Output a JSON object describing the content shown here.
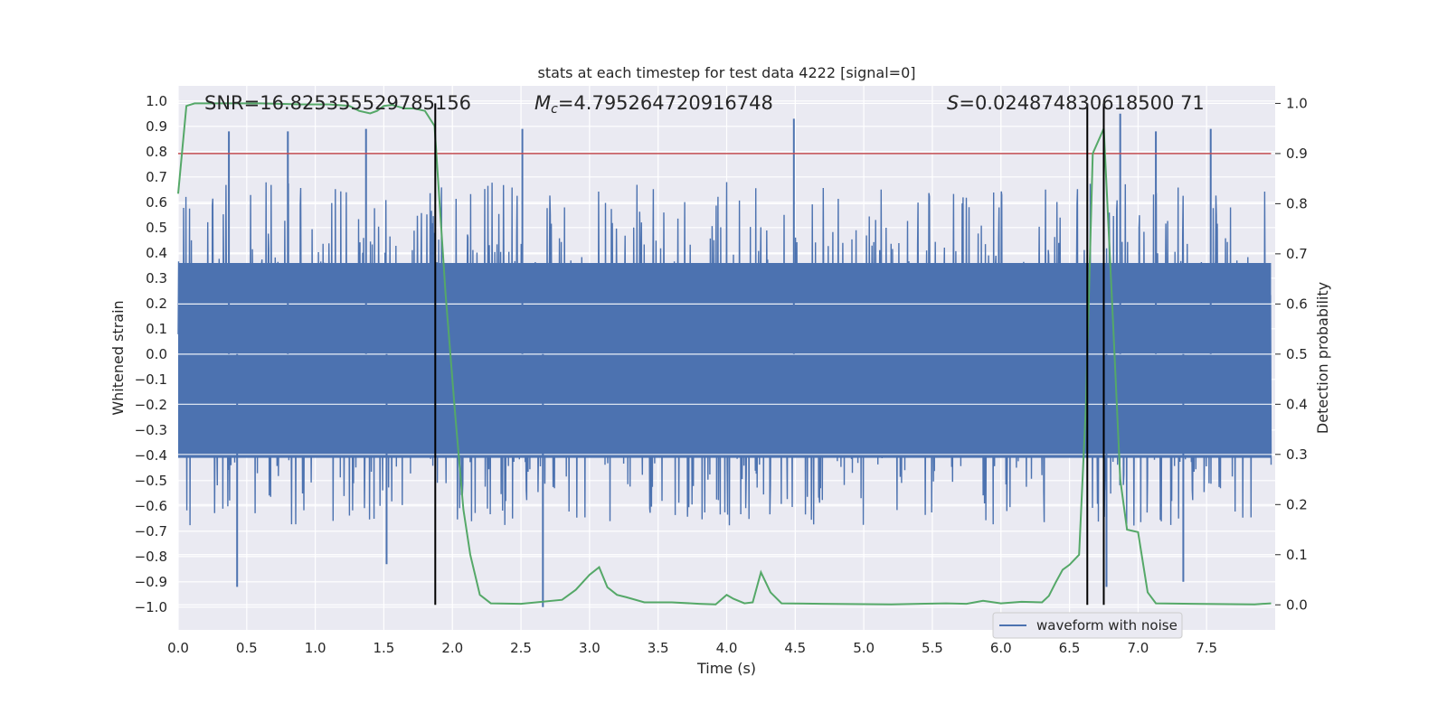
{
  "chart_data": {
    "type": "line",
    "title": "stats at each timestep for test data 4222 [signal=0]",
    "xlabel": "Time (s)",
    "ylabel": "Whitened strain",
    "ylabel_right": "Detection probability",
    "xlim": [
      0,
      8
    ],
    "ylim": [
      -1.09,
      1.06
    ],
    "ylim_right": [
      -0.05,
      1.035
    ],
    "x_ticks": [
      "0.0",
      "0.5",
      "1.0",
      "1.5",
      "2.0",
      "2.5",
      "3.0",
      "3.5",
      "4.0",
      "4.5",
      "5.0",
      "5.5",
      "6.0",
      "6.5",
      "7.0",
      "7.5"
    ],
    "y_ticks": [
      "1.0",
      "0.9",
      "0.8",
      "0.7",
      "0.6",
      "0.5",
      "0.4",
      "0.3",
      "0.2",
      "0.1",
      "0.0",
      "-0.1",
      "-0.2",
      "-0.3",
      "-0.4",
      "-0.5",
      "-0.6",
      "-0.7",
      "-0.8",
      "-0.9",
      "-1.0"
    ],
    "y_right_ticks": [
      "1.0",
      "0.9",
      "0.8",
      "0.7",
      "0.6",
      "0.5",
      "0.4",
      "0.3",
      "0.2",
      "0.1",
      "0.0"
    ],
    "annotations": {
      "snr": "SNR=16.825355529785156",
      "mc_symbol": "M",
      "mc_subscript": "c",
      "mc_value": "=4.795264720916748",
      "s_symbol": "S",
      "s_value": "=0.024874830618500 71"
    },
    "threshold": 0.9,
    "vertical_markers": [
      1.875,
      6.63,
      6.75
    ],
    "series": [
      {
        "name": "waveform with noise",
        "axis": "left",
        "color": "#4c72b0",
        "description": "dense whitened noise strain, mostly within ±0.4 with spikes to ±0.95",
        "spikes": [
          {
            "x": 0.37,
            "y": 0.88
          },
          {
            "x": 0.43,
            "y": -0.92
          },
          {
            "x": 0.8,
            "y": 0.88
          },
          {
            "x": 1.37,
            "y": 0.89
          },
          {
            "x": 1.52,
            "y": -0.83
          },
          {
            "x": 2.51,
            "y": 0.89
          },
          {
            "x": 2.66,
            "y": -1.0
          },
          {
            "x": 4.49,
            "y": 0.93
          },
          {
            "x": 6.87,
            "y": 0.95
          },
          {
            "x": 6.77,
            "y": -0.92
          },
          {
            "x": 7.13,
            "y": 0.88
          },
          {
            "x": 7.33,
            "y": -0.9
          },
          {
            "x": 7.53,
            "y": 0.89
          }
        ]
      },
      {
        "name": "detection probability",
        "axis": "right",
        "color": "#55a868",
        "x": [
          0.0,
          0.06,
          0.12,
          0.3,
          0.6,
          0.9,
          1.1,
          1.25,
          1.32,
          1.4,
          1.45,
          1.5,
          1.56,
          1.65,
          1.72,
          1.8,
          1.87,
          1.95,
          2.02,
          2.08,
          2.13,
          2.2,
          2.28,
          2.5,
          2.8,
          2.9,
          3.0,
          3.07,
          3.13,
          3.2,
          3.27,
          3.4,
          3.6,
          3.8,
          3.92,
          4.0,
          4.05,
          4.13,
          4.19,
          4.25,
          4.32,
          4.4,
          4.7,
          5.2,
          5.6,
          5.75,
          5.87,
          6.0,
          6.15,
          6.3,
          6.35,
          6.4,
          6.45,
          6.5,
          6.57,
          6.62,
          6.67,
          6.75,
          6.82,
          6.87,
          6.92,
          7.0,
          7.07,
          7.13,
          7.4,
          7.85,
          7.97
        ],
        "values": [
          0.82,
          0.995,
          1.0,
          1.0,
          1.0,
          0.998,
          0.998,
          0.995,
          0.985,
          0.98,
          0.985,
          0.995,
          0.997,
          0.99,
          0.99,
          0.985,
          0.955,
          0.62,
          0.38,
          0.19,
          0.1,
          0.02,
          0.003,
          0.002,
          0.01,
          0.03,
          0.06,
          0.075,
          0.035,
          0.02,
          0.015,
          0.005,
          0.005,
          0.002,
          0.001,
          0.02,
          0.012,
          0.003,
          0.005,
          0.065,
          0.025,
          0.003,
          0.002,
          0.001,
          0.003,
          0.002,
          0.008,
          0.003,
          0.006,
          0.005,
          0.018,
          0.045,
          0.07,
          0.08,
          0.1,
          0.4,
          0.9,
          0.95,
          0.55,
          0.25,
          0.15,
          0.145,
          0.025,
          0.003,
          0.002,
          0.001,
          0.003
        ]
      },
      {
        "name": "threshold",
        "axis": "right",
        "color": "#c44e52",
        "x": [
          0.0,
          7.97
        ],
        "values": [
          0.9,
          0.9
        ]
      }
    ],
    "legend": {
      "entries": [
        "waveform with noise"
      ],
      "position": "bottom-right"
    }
  },
  "colors": {
    "axes_bg": "#eaeaf2",
    "grid": "#ffffff",
    "waveform": "#4c72b0",
    "probability": "#55a868",
    "threshold": "#c44e52",
    "marker": "#000000"
  }
}
